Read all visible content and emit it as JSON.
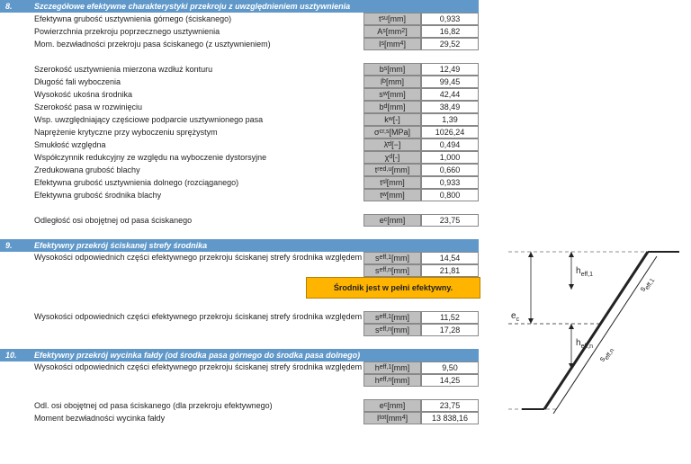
{
  "section8": {
    "num": "8.",
    "title": "Szczegółowe efektywne charakterystyki przekroju z uwzględnieniem usztywnienia",
    "rows1": [
      {
        "desc": "Efektywna grubość usztywnienia górnego (ściskanego)",
        "sym": "t<sub>su</sub> [mm]",
        "val": "0,933"
      },
      {
        "desc": "Powierzchnia przekroju poprzecznego usztywnienia",
        "sym": "A<sub>s</sub> [mm<sup>2</sup>]",
        "val": "16,82"
      },
      {
        "desc": "Mom. bezwładności przekroju pasa ściskanego (z usztywnieniem)",
        "sym": "I<sub>s</sub> [mm<sup>4</sup>]",
        "val": "29,52"
      }
    ],
    "rows2": [
      {
        "desc": "Szerokość usztywnienia mierzona wzdłuż konturu",
        "sym": "b<sub>s</sub> [mm]",
        "val": "12,49"
      },
      {
        "desc": "Długość fali wyboczenia",
        "sym": "l<sub>b</sub> [mm]",
        "val": "99,45"
      },
      {
        "desc": "Wysokość ukośna środnika",
        "sym": "s<sub>w</sub> [mm]",
        "val": "42,44"
      },
      {
        "desc": "Szerokość pasa w rozwinięciu",
        "sym": "b<sub>d</sub> [mm]",
        "val": "38,49"
      },
      {
        "desc": "Wsp. uwzględniający częściowe podparcie usztywnionego pasa",
        "sym": "k<sub>w</sub> [-]",
        "val": "1,39"
      },
      {
        "desc": "Naprężenie krytyczne przy wyboczeniu sprężystym",
        "sym": "σ<sub>cr,s</sub> [MPa]",
        "val": "1026,24"
      },
      {
        "desc": "Smukłość względna",
        "sym": "λ̄<sub>d</sub> [−]",
        "val": "0,494"
      },
      {
        "desc": "Współczynnik redukcyjny ze względu na wyboczenie dystorsyjne",
        "sym": "χ<sub>d</sub> [-]",
        "val": "1,000"
      },
      {
        "desc": "Zredukowana grubość blachy",
        "sym": "t<sub>red,u</sub> [mm]",
        "val": "0,660"
      },
      {
        "desc": "Efektywna grubość usztywnienia dolnego (rozciąganego)",
        "sym": "t<sub>sl</sub> [mm]",
        "val": "0,933"
      },
      {
        "desc": "Efektywna grubość środnika blachy",
        "sym": "t<sub>w</sub> [mm]",
        "val": "0,800"
      }
    ],
    "rows3": [
      {
        "desc": "Odległość osi obojętnej od pasa ściskanego",
        "sym": "e<sub>c</sub> [mm]",
        "val": "23,75"
      }
    ]
  },
  "section9": {
    "num": "9.",
    "title": "Efektywny przekrój ściskanej strefy środnika",
    "group1Desc": "Wysokości odpowiednich części efektywnego przekroju ściskanej strefy środnika względem układu lokalnego",
    "g1": [
      {
        "sym": "s<sub>eff,1</sub> [mm]",
        "val": "14,54"
      },
      {
        "sym": "s<sub>eff,n</sub> [mm]",
        "val": "21,81"
      }
    ],
    "note": "Środnik jest w pełni efektywny.",
    "group2Desc": "Wysokości odpowiednich części efektywnego przekroju ściskanej strefy środnika względem układu lokalnego",
    "g2": [
      {
        "sym": "s<sub>eff,1</sub> [mm]",
        "val": "11,52"
      },
      {
        "sym": "s<sub>eff,n</sub> [mm]",
        "val": "17,28"
      }
    ]
  },
  "section10": {
    "num": "10.",
    "title": "Efektywny przekrój wycinka fałdy (od środka pasa górnego do środka pasa dolnego)",
    "group1Desc": "Wysokości odpowiednich części efektywnego przekroju ściskanej strefy środnika względem układu globalnego",
    "g1": [
      {
        "sym": "h<sub>eff,1</sub> [mm]",
        "val": "9,50"
      },
      {
        "sym": "h<sub>eff,n</sub> [mm]",
        "val": "14,25"
      }
    ],
    "rows2": [
      {
        "desc": "Odl. osi obojętnej od pasa ściskanego (dla przekroju efektywnego)",
        "sym": "e<sub>c</sub> [mm]",
        "val": "23,75"
      },
      {
        "desc": "Moment bezwładności wycinka fałdy",
        "sym": "I<sub>tot</sub> [mm<sup>4</sup>]",
        "val": "13 838,16"
      }
    ]
  },
  "diagram": {
    "labels": {
      "heff1": "h<sub>eff,1</sub>",
      "heffn": "h<sub>eff,n</sub>",
      "seff1": "s<sub>eff,1</sub>",
      "seffn": "s<sub>eff,n</sub>",
      "ec": "e<sub>c</sub>"
    }
  }
}
